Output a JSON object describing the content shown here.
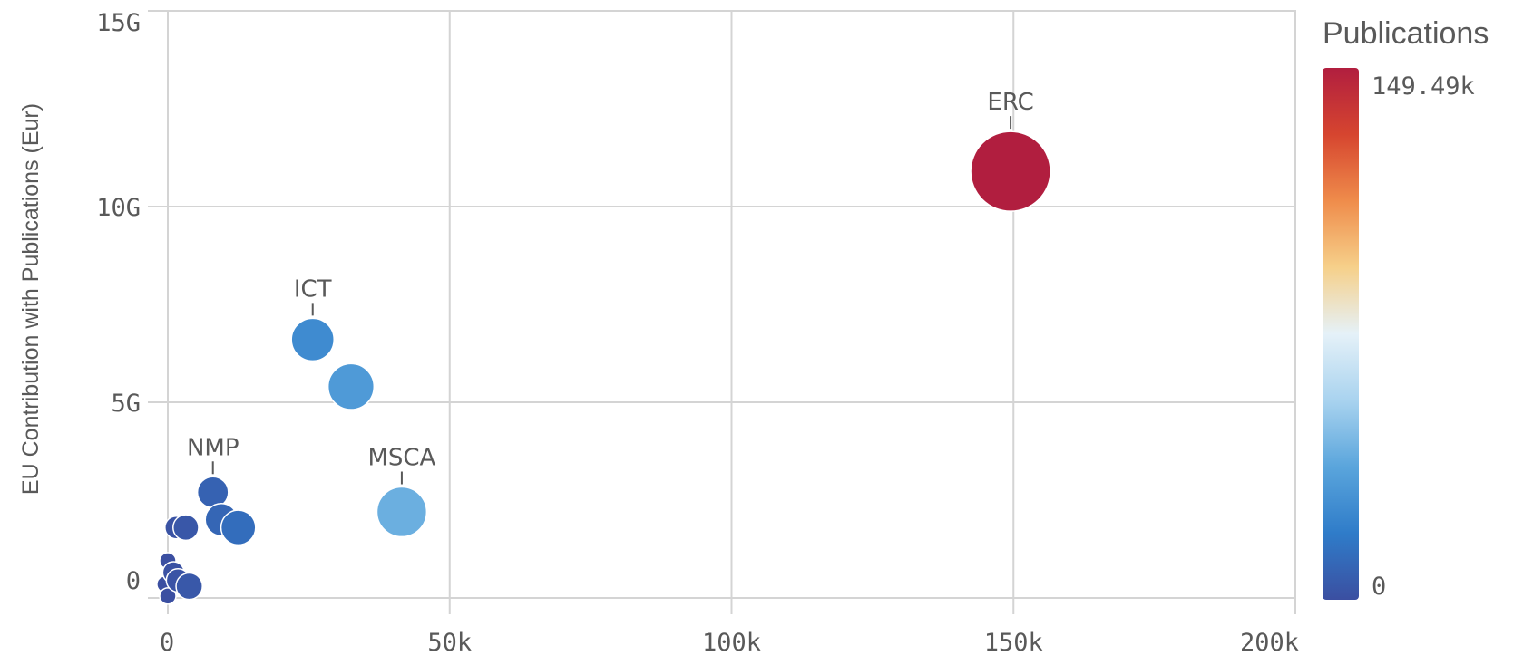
{
  "chart_data": {
    "type": "scatter",
    "title": "",
    "xlabel": "",
    "ylabel": "EU Contribution with Publications (Eur)",
    "xlim": [
      0,
      200000
    ],
    "ylim": [
      0,
      15000000000
    ],
    "grid": true,
    "x_ticks": [
      "0",
      "50k",
      "100k",
      "150k",
      "200k"
    ],
    "y_ticks": [
      "0",
      "5G",
      "10G",
      "15G"
    ],
    "size_and_color_measure": "Publications",
    "legend": {
      "title": "Publications",
      "position": "right",
      "max_label": "149.49k",
      "min_label": "0",
      "max_value": 149490,
      "min_value": 0
    },
    "points": [
      {
        "label": "ERC",
        "x": 149490,
        "y": 10900000000
      },
      {
        "label": "ICT",
        "x": 25700,
        "y": 6600000000
      },
      {
        "label": "",
        "x": 32500,
        "y": 5400000000
      },
      {
        "label": "MSCA",
        "x": 41500,
        "y": 2200000000
      },
      {
        "label": "NMP",
        "x": 8000,
        "y": 2700000000
      },
      {
        "label": "",
        "x": 9500,
        "y": 2000000000
      },
      {
        "label": "",
        "x": 12500,
        "y": 1800000000
      },
      {
        "label": "",
        "x": 1500,
        "y": 1800000000
      },
      {
        "label": "",
        "x": 3200,
        "y": 1800000000
      },
      {
        "label": "",
        "x": 0,
        "y": 950000000
      },
      {
        "label": "",
        "x": 1000,
        "y": 650000000
      },
      {
        "label": "",
        "x": 1800,
        "y": 450000000
      },
      {
        "label": "",
        "x": 3800,
        "y": 300000000
      },
      {
        "label": "",
        "x": -500,
        "y": 350000000
      },
      {
        "label": "",
        "x": 0,
        "y": 50000000
      }
    ]
  },
  "colors": {
    "scale": [
      "#3b4fa1",
      "#2f7cc9",
      "#5aa5dc",
      "#a9d3ef",
      "#e5f1f8",
      "#f6d08a",
      "#ef8c4b",
      "#d6452f",
      "#b11e3f"
    ],
    "grid": "#d4d4d4",
    "text": "#595959"
  }
}
